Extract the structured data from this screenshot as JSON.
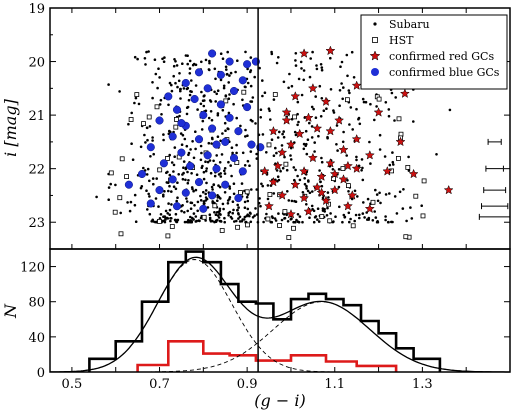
{
  "chart_data": [
    {
      "type": "scatter",
      "panel": "top",
      "ylabel": "i [mag]",
      "xlim": [
        0.45,
        1.5
      ],
      "ylim": [
        23.5,
        19.0
      ],
      "y_inverted": true,
      "yticks": [
        "19",
        "20",
        "21",
        "22",
        "23"
      ],
      "xticks_labeled": false,
      "vline_x": 0.925,
      "legend_position": "top-right",
      "legend": [
        "Subaru",
        "HST",
        "confirmed red GCs",
        "confirmed blue GCs"
      ],
      "colors": {
        "subaru": "#000000",
        "hst": "#000000",
        "red": "#cc1111",
        "blue": "#1f2fd6"
      },
      "series": [
        {
          "name": "Subaru",
          "marker": "dot",
          "count": 900,
          "x_range": [
            0.55,
            1.38
          ],
          "y_range": [
            19.8,
            23.0
          ]
        },
        {
          "name": "HST",
          "marker": "open-square",
          "count": 70,
          "x_range": [
            0.58,
            1.32
          ],
          "y_range": [
            20.5,
            23.3
          ]
        },
        {
          "name": "confirmed red GCs",
          "marker": "star",
          "points": [
            [
              1.03,
              19.85
            ],
            [
              1.09,
              19.8
            ],
            [
              1.17,
              20.1
            ],
            [
              1.26,
              20.6
            ],
            [
              1.15,
              20.45
            ],
            [
              1.05,
              20.5
            ],
            [
              1.01,
              20.65
            ],
            [
              1.08,
              20.75
            ],
            [
              1.2,
              20.95
            ],
            [
              0.99,
              20.95
            ],
            [
              1.04,
              21.05
            ],
            [
              1.11,
              21.1
            ],
            [
              1.09,
              21.3
            ],
            [
              1.15,
              21.45
            ],
            [
              0.96,
              21.3
            ],
            [
              1.02,
              21.35
            ],
            [
              1.06,
              21.25
            ],
            [
              1.0,
              21.55
            ],
            [
              1.12,
              21.65
            ],
            [
              1.18,
              21.75
            ],
            [
              0.98,
              21.7
            ],
            [
              1.05,
              21.8
            ],
            [
              1.09,
              21.9
            ],
            [
              1.15,
              22.0
            ],
            [
              1.22,
              22.05
            ],
            [
              1.28,
              22.1
            ],
            [
              0.97,
              21.95
            ],
            [
              1.03,
              22.05
            ],
            [
              1.07,
              22.15
            ],
            [
              1.12,
              22.2
            ],
            [
              0.96,
              22.25
            ],
            [
              1.01,
              22.3
            ],
            [
              1.06,
              22.35
            ],
            [
              1.1,
              22.4
            ],
            [
              1.14,
              22.5
            ],
            [
              0.98,
              22.5
            ],
            [
              1.03,
              22.55
            ],
            [
              1.08,
              22.6
            ],
            [
              1.13,
              22.7
            ],
            [
              1.18,
              22.75
            ],
            [
              0.95,
              22.7
            ],
            [
              1.04,
              22.8
            ],
            [
              1.36,
              22.4
            ],
            [
              1.0,
              22.85
            ],
            [
              1.1,
              22.1
            ],
            [
              0.99,
              21.1
            ],
            [
              1.13,
              21.95
            ],
            [
              1.25,
              21.5
            ],
            [
              0.94,
              22.05
            ],
            [
              1.07,
              22.45
            ]
          ]
        },
        {
          "name": "confirmed blue GCs",
          "marker": "filled-circle",
          "points": [
            [
              0.82,
              19.85
            ],
            [
              0.86,
              20.0
            ],
            [
              0.9,
              20.05
            ],
            [
              0.79,
              20.2
            ],
            [
              0.84,
              20.25
            ],
            [
              0.89,
              20.35
            ],
            [
              0.76,
              20.4
            ],
            [
              0.81,
              20.5
            ],
            [
              0.87,
              20.55
            ],
            [
              0.72,
              20.65
            ],
            [
              0.78,
              20.7
            ],
            [
              0.84,
              20.8
            ],
            [
              0.9,
              20.85
            ],
            [
              0.74,
              20.9
            ],
            [
              0.8,
              21.0
            ],
            [
              0.86,
              21.05
            ],
            [
              0.7,
              21.1
            ],
            [
              0.76,
              21.2
            ],
            [
              0.82,
              21.25
            ],
            [
              0.88,
              21.3
            ],
            [
              0.73,
              21.4
            ],
            [
              0.79,
              21.45
            ],
            [
              0.85,
              21.5
            ],
            [
              0.91,
              21.55
            ],
            [
              0.68,
              21.6
            ],
            [
              0.75,
              21.7
            ],
            [
              0.81,
              21.75
            ],
            [
              0.87,
              21.8
            ],
            [
              0.71,
              21.9
            ],
            [
              0.77,
              21.95
            ],
            [
              0.83,
              22.0
            ],
            [
              0.89,
              22.05
            ],
            [
              0.66,
              22.1
            ],
            [
              0.73,
              22.2
            ],
            [
              0.79,
              22.25
            ],
            [
              0.85,
              22.3
            ],
            [
              0.7,
              22.4
            ],
            [
              0.76,
              22.45
            ],
            [
              0.82,
              22.5
            ],
            [
              0.88,
              22.55
            ],
            [
              0.68,
              22.65
            ],
            [
              0.74,
              22.7
            ],
            [
              0.8,
              22.75
            ],
            [
              0.63,
              22.3
            ],
            [
              0.92,
              20.0
            ],
            [
              0.93,
              21.6
            ],
            [
              0.75,
              21.15
            ],
            [
              0.83,
              21.55
            ]
          ]
        }
      ],
      "error_bars": [
        {
          "y": 21.5,
          "half_width": 0.015
        },
        {
          "y": 22.0,
          "half_width": 0.02
        },
        {
          "y": 22.4,
          "half_width": 0.025
        },
        {
          "y": 22.7,
          "half_width": 0.03
        },
        {
          "y": 22.9,
          "half_width": 0.035
        }
      ],
      "error_bar_x": 1.465
    },
    {
      "type": "histogram",
      "panel": "bottom",
      "xlabel": "(g − i)",
      "ylabel": "N",
      "xlim": [
        0.45,
        1.5
      ],
      "ylim": [
        0,
        140
      ],
      "xticks": [
        "0.5",
        "0.7",
        "0.9",
        "1.1",
        "1.3"
      ],
      "yticks": [
        "0",
        "40",
        "80",
        "120"
      ],
      "vline_x": 0.925,
      "colors": {
        "all": "#000000",
        "confirmed": "#dd1a1a"
      },
      "series": [
        {
          "name": "all",
          "bin_edges": [
            0.54,
            0.6,
            0.66,
            0.72,
            0.76,
            0.8,
            0.84,
            0.88,
            0.92,
            0.96,
            1.0,
            1.04,
            1.08,
            1.12,
            1.16,
            1.2,
            1.24,
            1.28,
            1.34
          ],
          "counts": [
            15,
            35,
            80,
            125,
            137,
            125,
            100,
            80,
            78,
            60,
            83,
            89,
            83,
            76,
            58,
            44,
            27,
            15
          ]
        },
        {
          "name": "confirmed",
          "bin_edges": [
            0.65,
            0.72,
            0.8,
            0.86,
            0.92,
            1.0,
            1.08,
            1.15,
            1.24
          ],
          "counts": [
            8,
            35,
            21,
            19,
            13,
            19,
            12,
            7
          ]
        }
      ],
      "fits": [
        {
          "name": "blue",
          "amplitude": 128,
          "mean": 0.78,
          "sigma": 0.085
        },
        {
          "name": "red",
          "amplitude": 80,
          "mean": 1.07,
          "sigma": 0.11
        }
      ]
    }
  ]
}
